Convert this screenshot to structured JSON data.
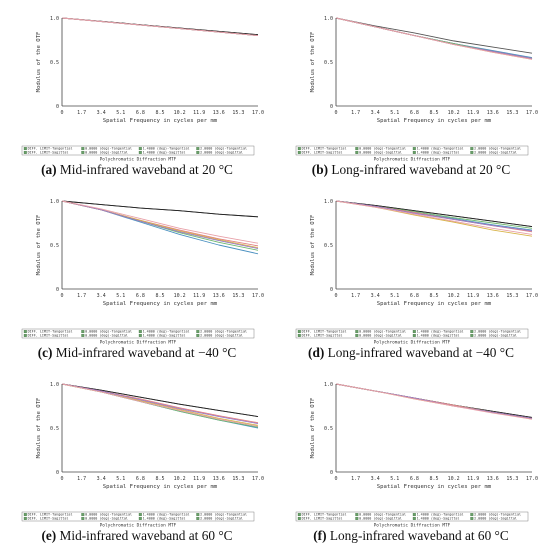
{
  "figure": {
    "panels": [
      {
        "label": "(a)",
        "caption": " Mid-infrared waveband at 20 °C"
      },
      {
        "label": "(b)",
        "caption": " Long-infrared waveband at 20 °C"
      },
      {
        "label": "(c)",
        "caption": " Mid-infrared waveband at −40 °C"
      },
      {
        "label": "(d)",
        "caption": " Long-infrared waveband at −40 °C"
      },
      {
        "label": "(e)",
        "caption": " Mid-infrared waveband at 60 °C"
      },
      {
        "label": "(f)",
        "caption": " Long-infrared waveband at 60 °C"
      }
    ]
  },
  "colors": {
    "diff_tangential": "#555555",
    "diff_sagittal": "#222222",
    "f0_tangential": "#4a90c0",
    "f0_sagittal": "#70b870",
    "f1_tangential": "#e28080",
    "f1_sagittal": "#d8b44a",
    "f2_tangential": "#9a7ac4",
    "f2_sagittal": "#e8a0a8"
  },
  "chart_data": [
    {
      "type": "line",
      "xlabel": "Spatial Frequency in cycles per mm",
      "ylabel": "Modulus of the OTF",
      "xlim": [
        0,
        17.0
      ],
      "ylim": [
        0,
        1.0
      ],
      "x_ticks": [
        "0",
        "1.7",
        "3.4",
        "5.1",
        "6.8",
        "8.5",
        "10.2",
        "11.9",
        "13.6",
        "15.3",
        "17.0"
      ],
      "y_ticks": [
        "0",
        "0.5",
        "1.0"
      ],
      "legend": [
        "DIFF. LIMIT-Tangential",
        "DIFF. LIMIT-Sagittal",
        "0.0000 (deg)-Tangential",
        "0.0000 (deg)-Sagittal",
        "1.4000 (deg)-Tangential",
        "1.4000 (deg)-Sagittal",
        "2.0000 (deg)-Tangential",
        "2.0000 (deg)-Sagittal"
      ],
      "footer": "Polychromatic Diffraction MTF",
      "x": [
        0,
        17.0
      ],
      "series": [
        {
          "color_key": "diff_tangential",
          "values": [
            1.0,
            0.81
          ]
        },
        {
          "color_key": "diff_sagittal",
          "values": [
            1.0,
            0.81
          ]
        },
        {
          "color_key": "f0_tangential",
          "values": [
            1.0,
            0.8
          ]
        },
        {
          "color_key": "f0_sagittal",
          "values": [
            1.0,
            0.8
          ]
        },
        {
          "color_key": "f1_tangential",
          "values": [
            1.0,
            0.8
          ]
        },
        {
          "color_key": "f1_sagittal",
          "values": [
            1.0,
            0.8
          ]
        },
        {
          "color_key": "f2_tangential",
          "values": [
            1.0,
            0.8
          ]
        },
        {
          "color_key": "f2_sagittal",
          "values": [
            1.0,
            0.8
          ]
        }
      ]
    },
    {
      "type": "line",
      "xlabel": "Spatial Frequency in cycles per mm",
      "ylabel": "Modulus of the OTF",
      "xlim": [
        0,
        17.0
      ],
      "ylim": [
        0,
        1.0
      ],
      "x_ticks": [
        "0",
        "1.7",
        "3.4",
        "5.1",
        "6.8",
        "8.5",
        "10.2",
        "11.9",
        "13.6",
        "15.3",
        "17.0"
      ],
      "y_ticks": [
        "0",
        "0.5",
        "1.0"
      ],
      "legend": [
        "DIFF. LIMIT-Tangential",
        "DIFF. LIMIT-Sagittal",
        "0.0000 (deg)-Tangential",
        "0.0000 (deg)-Sagittal",
        "1.4000 (deg)-Tangential",
        "1.4000 (deg)-Sagittal",
        "2.0000 (deg)-Tangential",
        "2.0000 (deg)-Sagittal"
      ],
      "footer": "Polychromatic Diffraction MTF",
      "x": [
        0,
        3.4,
        6.8,
        10.2,
        13.6,
        17.0
      ],
      "series": [
        {
          "color_key": "diff_tangential",
          "values": [
            1.0,
            0.91,
            0.83,
            0.74,
            0.67,
            0.6
          ]
        },
        {
          "color_key": "diff_sagittal",
          "values": [
            1.0,
            0.9,
            0.8,
            0.71,
            0.62,
            0.54
          ]
        },
        {
          "color_key": "f0_tangential",
          "values": [
            1.0,
            0.9,
            0.8,
            0.71,
            0.63,
            0.55
          ]
        },
        {
          "color_key": "f0_sagittal",
          "values": [
            1.0,
            0.9,
            0.8,
            0.71,
            0.62,
            0.54
          ]
        },
        {
          "color_key": "f1_tangential",
          "values": [
            1.0,
            0.9,
            0.8,
            0.7,
            0.62,
            0.54
          ]
        },
        {
          "color_key": "f1_sagittal",
          "values": [
            1.0,
            0.9,
            0.8,
            0.7,
            0.61,
            0.53
          ]
        },
        {
          "color_key": "f2_tangential",
          "values": [
            1.0,
            0.9,
            0.8,
            0.7,
            0.62,
            0.54
          ]
        },
        {
          "color_key": "f2_sagittal",
          "values": [
            1.0,
            0.9,
            0.8,
            0.7,
            0.61,
            0.53
          ]
        }
      ]
    },
    {
      "type": "line",
      "xlabel": "Spatial Frequency in cycles per mm",
      "ylabel": "Modulus of the OTF",
      "xlim": [
        0,
        17.0
      ],
      "ylim": [
        0,
        1.0
      ],
      "x_ticks": [
        "0",
        "1.7",
        "3.4",
        "5.1",
        "6.8",
        "8.5",
        "10.2",
        "11.9",
        "13.6",
        "15.3",
        "17.0"
      ],
      "y_ticks": [
        "0",
        "0.5",
        "1.0"
      ],
      "legend": [
        "DIFF. LIMIT-Tangential",
        "DIFF. LIMIT-Sagittal",
        "0.0000 (deg)-Tangential",
        "0.0000 (deg)-Sagittal",
        "1.4000 (deg)-Tangential",
        "1.4000 (deg)-Sagittal",
        "2.0000 (deg)-Tangential",
        "2.0000 (deg)-Sagittal"
      ],
      "footer": "Polychromatic Diffraction MTF",
      "x": [
        0,
        3.4,
        6.8,
        10.2,
        13.6,
        17.0
      ],
      "series": [
        {
          "color_key": "diff_tangential",
          "values": [
            1.0,
            0.96,
            0.92,
            0.89,
            0.85,
            0.82
          ]
        },
        {
          "color_key": "diff_sagittal",
          "values": [
            1.0,
            0.96,
            0.92,
            0.89,
            0.85,
            0.82
          ]
        },
        {
          "color_key": "f0_tangential",
          "values": [
            1.0,
            0.9,
            0.76,
            0.62,
            0.5,
            0.4
          ]
        },
        {
          "color_key": "f0_sagittal",
          "values": [
            1.0,
            0.9,
            0.77,
            0.64,
            0.53,
            0.44
          ]
        },
        {
          "color_key": "f1_tangential",
          "values": [
            1.0,
            0.9,
            0.78,
            0.67,
            0.57,
            0.49
          ]
        },
        {
          "color_key": "f1_sagittal",
          "values": [
            1.0,
            0.9,
            0.78,
            0.66,
            0.56,
            0.47
          ]
        },
        {
          "color_key": "f2_tangential",
          "values": [
            1.0,
            0.9,
            0.77,
            0.65,
            0.55,
            0.46
          ]
        },
        {
          "color_key": "f2_sagittal",
          "values": [
            1.0,
            0.91,
            0.8,
            0.69,
            0.6,
            0.52
          ]
        }
      ]
    },
    {
      "type": "line",
      "xlabel": "Spatial Frequency in cycles per mm",
      "ylabel": "Modulus of the OTF",
      "xlim": [
        0,
        17.0
      ],
      "ylim": [
        0,
        1.0
      ],
      "x_ticks": [
        "0",
        "1.7",
        "3.4",
        "5.1",
        "6.8",
        "8.5",
        "10.2",
        "11.9",
        "13.6",
        "15.3",
        "17.0"
      ],
      "y_ticks": [
        "0",
        "0.5",
        "1.0"
      ],
      "legend": [
        "DIFF. LIMIT-Tangential",
        "DIFF. LIMIT-Sagittal",
        "0.0000 (deg)-Tangential",
        "0.0000 (deg)-Sagittal",
        "1.4000 (deg)-Tangential",
        "1.4000 (deg)-Sagittal",
        "2.0000 (deg)-Tangential",
        "2.0000 (deg)-Sagittal"
      ],
      "footer": "Polychromatic Diffraction MTF",
      "x": [
        0,
        3.4,
        6.8,
        10.2,
        13.6,
        17.0
      ],
      "series": [
        {
          "color_key": "diff_tangential",
          "values": [
            1.0,
            0.95,
            0.89,
            0.83,
            0.77,
            0.71
          ]
        },
        {
          "color_key": "diff_sagittal",
          "values": [
            1.0,
            0.95,
            0.89,
            0.83,
            0.77,
            0.71
          ]
        },
        {
          "color_key": "f0_tangential",
          "values": [
            1.0,
            0.94,
            0.87,
            0.8,
            0.73,
            0.67
          ]
        },
        {
          "color_key": "f0_sagittal",
          "values": [
            1.0,
            0.94,
            0.88,
            0.81,
            0.75,
            0.69
          ]
        },
        {
          "color_key": "f1_tangential",
          "values": [
            1.0,
            0.94,
            0.87,
            0.79,
            0.72,
            0.65
          ]
        },
        {
          "color_key": "f1_sagittal",
          "values": [
            1.0,
            0.93,
            0.84,
            0.76,
            0.67,
            0.6
          ]
        },
        {
          "color_key": "f2_tangential",
          "values": [
            1.0,
            0.94,
            0.86,
            0.79,
            0.72,
            0.66
          ]
        },
        {
          "color_key": "f2_sagittal",
          "values": [
            1.0,
            0.93,
            0.85,
            0.77,
            0.69,
            0.62
          ]
        }
      ]
    },
    {
      "type": "line",
      "xlabel": "Spatial Frequency in cycles per mm",
      "ylabel": "Modulus of the OTF",
      "xlim": [
        0,
        17.0
      ],
      "ylim": [
        0,
        1.0
      ],
      "x_ticks": [
        "0",
        "1.7",
        "3.4",
        "5.1",
        "6.8",
        "8.5",
        "10.2",
        "11.9",
        "13.6",
        "15.3",
        "17.0"
      ],
      "y_ticks": [
        "0",
        "0.5",
        "1.0"
      ],
      "legend": [
        "DIFF. LIMIT-Tangential",
        "DIFF. LIMIT-Sagittal",
        "0.0000 (deg)-Tangential",
        "0.0000 (deg)-Sagittal",
        "1.4000 (deg)-Tangential",
        "1.4000 (deg)-Sagittal",
        "2.0000 (deg)-Tangential",
        "2.0000 (deg)-Sagittal"
      ],
      "footer": "Polychromatic Diffraction MTF",
      "x": [
        0,
        3.4,
        6.8,
        10.2,
        13.6,
        17.0
      ],
      "series": [
        {
          "color_key": "diff_tangential",
          "values": [
            1.0,
            0.93,
            0.85,
            0.77,
            0.7,
            0.63
          ]
        },
        {
          "color_key": "diff_sagittal",
          "values": [
            1.0,
            0.93,
            0.85,
            0.77,
            0.7,
            0.63
          ]
        },
        {
          "color_key": "f0_tangential",
          "values": [
            1.0,
            0.91,
            0.8,
            0.69,
            0.59,
            0.5
          ]
        },
        {
          "color_key": "f0_sagittal",
          "values": [
            1.0,
            0.91,
            0.8,
            0.69,
            0.59,
            0.51
          ]
        },
        {
          "color_key": "f1_tangential",
          "values": [
            1.0,
            0.92,
            0.83,
            0.73,
            0.64,
            0.56
          ]
        },
        {
          "color_key": "f1_sagittal",
          "values": [
            1.0,
            0.91,
            0.81,
            0.71,
            0.61,
            0.53
          ]
        },
        {
          "color_key": "f2_tangential",
          "values": [
            1.0,
            0.92,
            0.82,
            0.72,
            0.63,
            0.55
          ]
        },
        {
          "color_key": "f2_sagittal",
          "values": [
            1.0,
            0.91,
            0.8,
            0.7,
            0.6,
            0.52
          ]
        }
      ]
    },
    {
      "type": "line",
      "xlabel": "Spatial Frequency in cycles per mm",
      "ylabel": "Modulus of the OTF",
      "xlim": [
        0,
        17.0
      ],
      "ylim": [
        0,
        1.0
      ],
      "x_ticks": [
        "0",
        "1.7",
        "3.4",
        "5.1",
        "6.8",
        "8.5",
        "10.2",
        "11.9",
        "13.6",
        "15.3",
        "17.0"
      ],
      "y_ticks": [
        "0",
        "0.5",
        "1.0"
      ],
      "legend": [
        "DIFF. LIMIT-Tangential",
        "DIFF. LIMIT-Sagittal",
        "0.0000 (deg)-Tangential",
        "0.0000 (deg)-Sagittal",
        "1.4000 (deg)-Tangential",
        "1.4000 (deg)-Sagittal",
        "2.0000 (deg)-Tangential",
        "2.0000 (deg)-Sagittal"
      ],
      "footer": "Polychromatic Diffraction MTF",
      "x": [
        0,
        3.4,
        6.8,
        10.2,
        13.6,
        17.0
      ],
      "series": [
        {
          "color_key": "diff_tangential",
          "values": [
            1.0,
            0.92,
            0.84,
            0.76,
            0.69,
            0.62
          ]
        },
        {
          "color_key": "diff_sagittal",
          "values": [
            1.0,
            0.92,
            0.84,
            0.76,
            0.69,
            0.62
          ]
        },
        {
          "color_key": "f0_tangential",
          "values": [
            1.0,
            0.92,
            0.84,
            0.76,
            0.68,
            0.61
          ]
        },
        {
          "color_key": "f0_sagittal",
          "values": [
            1.0,
            0.92,
            0.84,
            0.76,
            0.68,
            0.61
          ]
        },
        {
          "color_key": "f1_tangential",
          "values": [
            1.0,
            0.92,
            0.84,
            0.76,
            0.68,
            0.61
          ]
        },
        {
          "color_key": "f1_sagittal",
          "values": [
            1.0,
            0.92,
            0.83,
            0.75,
            0.68,
            0.6
          ]
        },
        {
          "color_key": "f2_tangential",
          "values": [
            1.0,
            0.92,
            0.84,
            0.75,
            0.68,
            0.61
          ]
        },
        {
          "color_key": "f2_sagittal",
          "values": [
            1.0,
            0.92,
            0.83,
            0.75,
            0.67,
            0.6
          ]
        }
      ]
    }
  ]
}
